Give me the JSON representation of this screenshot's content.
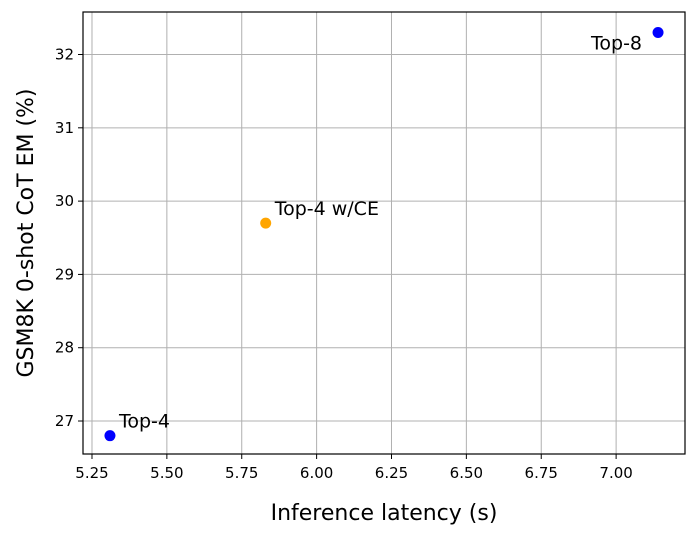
{
  "chart_data": {
    "type": "scatter",
    "title": "",
    "xlabel": "Inference latency (s)",
    "ylabel": "GSM8K 0-shot CoT EM (%)",
    "xlim": [
      5.22,
      7.23
    ],
    "ylim": [
      26.55,
      32.58
    ],
    "xticks": [
      "5.25",
      "5.50",
      "5.75",
      "6.00",
      "6.25",
      "6.50",
      "6.75",
      "7.00"
    ],
    "yticks": [
      "27",
      "28",
      "29",
      "30",
      "31",
      "32"
    ],
    "grid": true,
    "points": [
      {
        "label": "Top-4",
        "x": 5.31,
        "y": 26.8,
        "color": "#0000ff",
        "label_position": "upper-right"
      },
      {
        "label": "Top-4 w/CE",
        "x": 5.83,
        "y": 29.7,
        "color": "#ffa500",
        "label_position": "upper-right"
      },
      {
        "label": "Top-8",
        "x": 7.14,
        "y": 32.3,
        "color": "#0000ff",
        "label_position": "lower-left"
      }
    ]
  }
}
